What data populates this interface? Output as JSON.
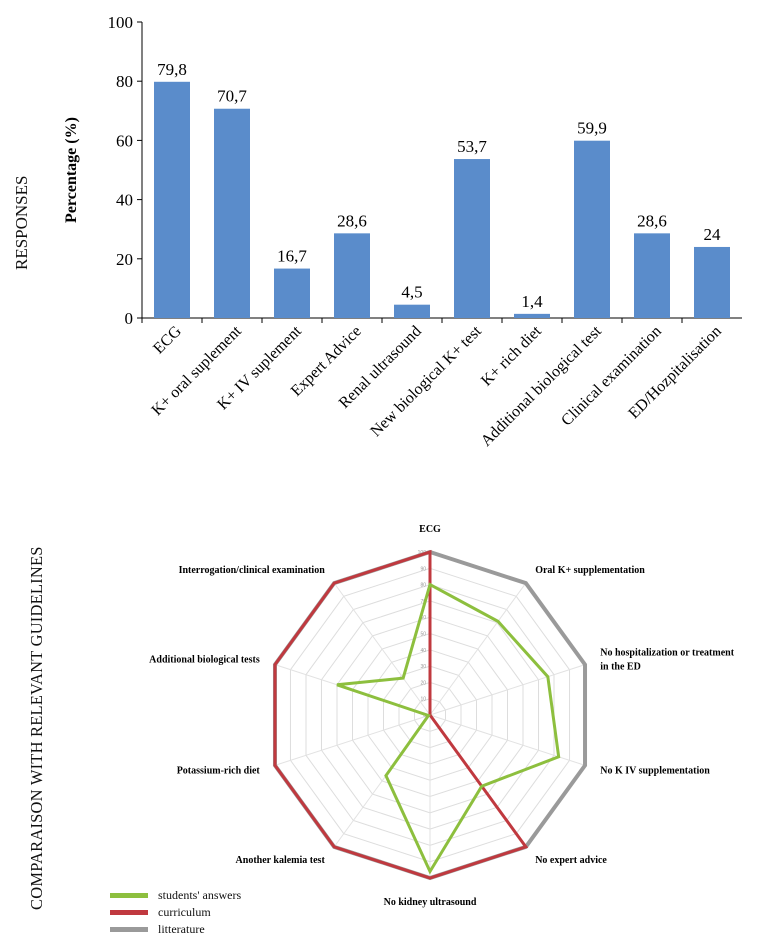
{
  "sections": {
    "responses": "RESPONSES",
    "comparison": "COMPARAISON WITH RELEVANT GUIDELINES"
  },
  "colors": {
    "bar": "#5a8ccb",
    "students": "#8dbf3e",
    "curriculum": "#c0393f",
    "litterature": "#9a9a9a"
  },
  "chart_data": [
    {
      "type": "bar",
      "categories": [
        "ECG",
        "K+ oral suplement",
        "K+ IV suplement",
        "Expert Advice",
        "Renal ultrasound",
        "New biological K+ test",
        "K+ rich diet",
        "Additional biological test",
        "Clinical examination",
        "ED/Hozpitalisation"
      ],
      "values": [
        79.8,
        70.7,
        16.7,
        28.6,
        4.5,
        53.7,
        1.4,
        59.9,
        28.6,
        24
      ],
      "value_labels": [
        "79,8",
        "70,7",
        "16,7",
        "28,6",
        "4,5",
        "53,7",
        "1,4",
        "59,9",
        "28,6",
        "24"
      ],
      "ylabel": "Percentage (%)",
      "ylim": [
        0,
        100
      ],
      "yticks": [
        0,
        20,
        40,
        60,
        80,
        100
      ],
      "grid": false,
      "legend": "none"
    },
    {
      "type": "radar",
      "axes": [
        "ECG",
        "Oral K+ supplementation",
        "No hospitalization or treatment in the ED",
        "No K IV supplementation",
        "No expert advice",
        "No kidney ultrasound",
        "Another kalemia test",
        "Potassium-rich diet",
        "Additional biological tests",
        "Interrogation/clinical examination"
      ],
      "axes_display": [
        [
          "ECG"
        ],
        [
          "Oral K+ supplementation"
        ],
        [
          "No hospitalization or treatment",
          "in the ED"
        ],
        [
          "No K IV supplementation"
        ],
        [
          "No expert advice"
        ],
        [
          "No kidney ultrasound"
        ],
        [
          "Another kalemia test"
        ],
        [
          "Potassium-rich diet"
        ],
        [
          "Additional biological tests"
        ],
        [
          "Interrogation/clinical examination"
        ]
      ],
      "rlim": [
        0,
        100
      ],
      "rticks": [
        0,
        10,
        20,
        30,
        40,
        50,
        60,
        70,
        80,
        90,
        100
      ],
      "grid": true,
      "legend": "bottom-left",
      "series": [
        {
          "name": "students' answers",
          "values": [
            80,
            71,
            76,
            83,
            54,
            96,
            46,
            1,
            60,
            28
          ]
        },
        {
          "name": "curriculum",
          "values": [
            100,
            0,
            0,
            0,
            100,
            100,
            100,
            100,
            100,
            100
          ]
        },
        {
          "name": "litterature",
          "values": [
            100,
            100,
            100,
            100,
            100,
            100,
            100,
            100,
            100,
            100
          ]
        }
      ]
    }
  ]
}
